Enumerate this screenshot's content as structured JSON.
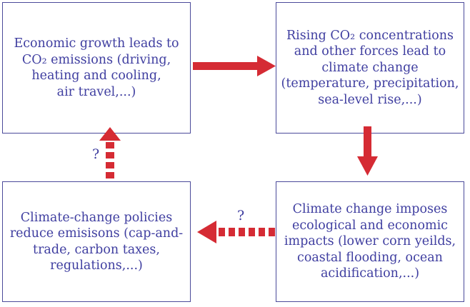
{
  "diagram": {
    "boxes": {
      "top_left": "Economic growth leads to\nCO₂ emissions (driving,\nheating and cooling,\nair travel,...)",
      "top_right": "Rising CO₂ concentrations\nand other forces lead to\nclimate change\n(temperature, precipitation,\nsea-level rise,...)",
      "bottom_right": "Climate change imposes\necological and economic\nimpacts (lower corn yeilds,\ncoastal flooding, ocean\nacidification,...)",
      "bottom_left": "Climate-change policies\nreduce emisisons (cap-and-\ntrade, carbon taxes,\nregulations,...)"
    },
    "uncertain_label_left": "?",
    "uncertain_label_bottom": "?",
    "colors": {
      "box_border": "#4b4a9a",
      "text": "#3f3ea0",
      "arrow": "#d52b34"
    }
  }
}
